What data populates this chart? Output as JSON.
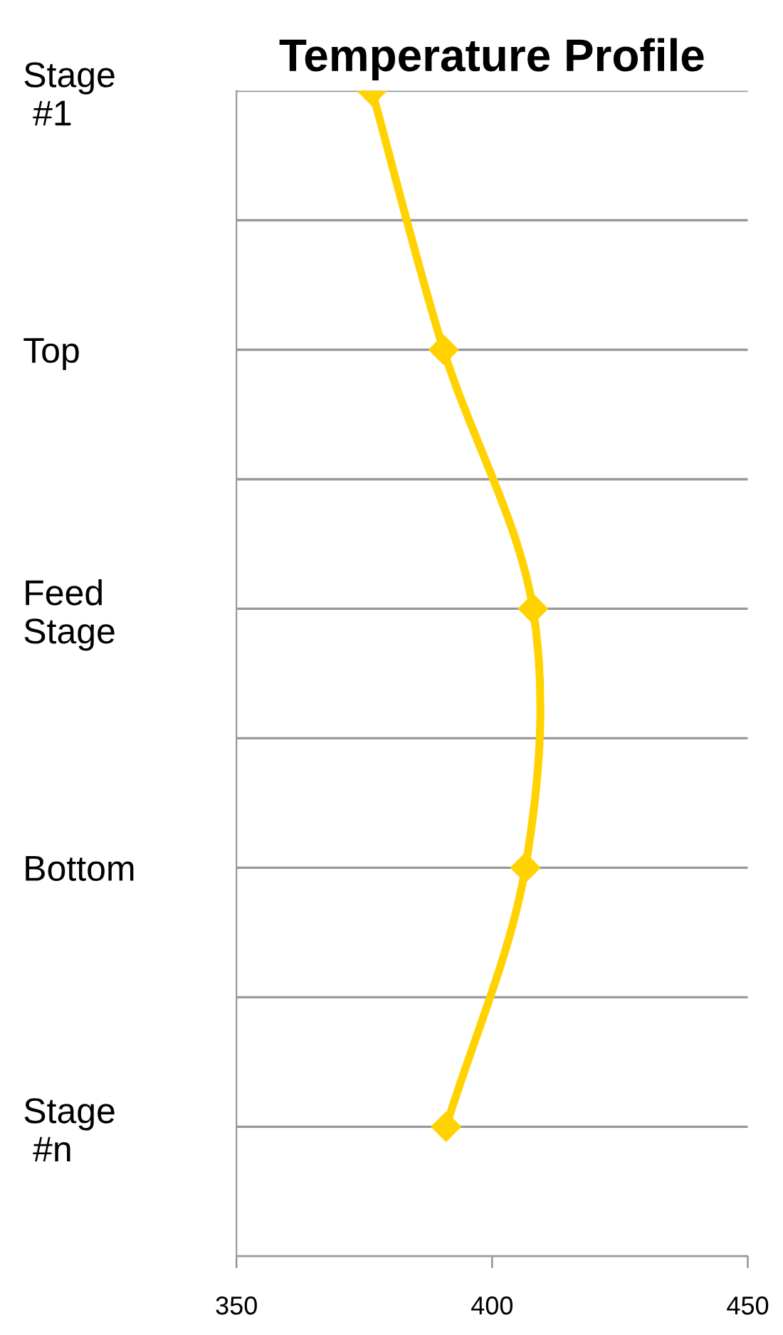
{
  "chart_data": {
    "type": "line",
    "orientation": "horizontal",
    "title": "Temperature Profile",
    "categories": [
      "Stage\n #1",
      "Top",
      "Feed\nStage",
      "Bottom",
      "Stage\n #n"
    ],
    "series": [
      {
        "color": "#ffd200",
        "values": [
          376.5,
          390.5,
          408,
          406.5,
          391
        ]
      }
    ],
    "xlim": [
      350,
      450
    ],
    "xticks": [
      350,
      400,
      450
    ],
    "grid": "y",
    "marker": "diamond",
    "line_style": "solid",
    "legend": false
  }
}
